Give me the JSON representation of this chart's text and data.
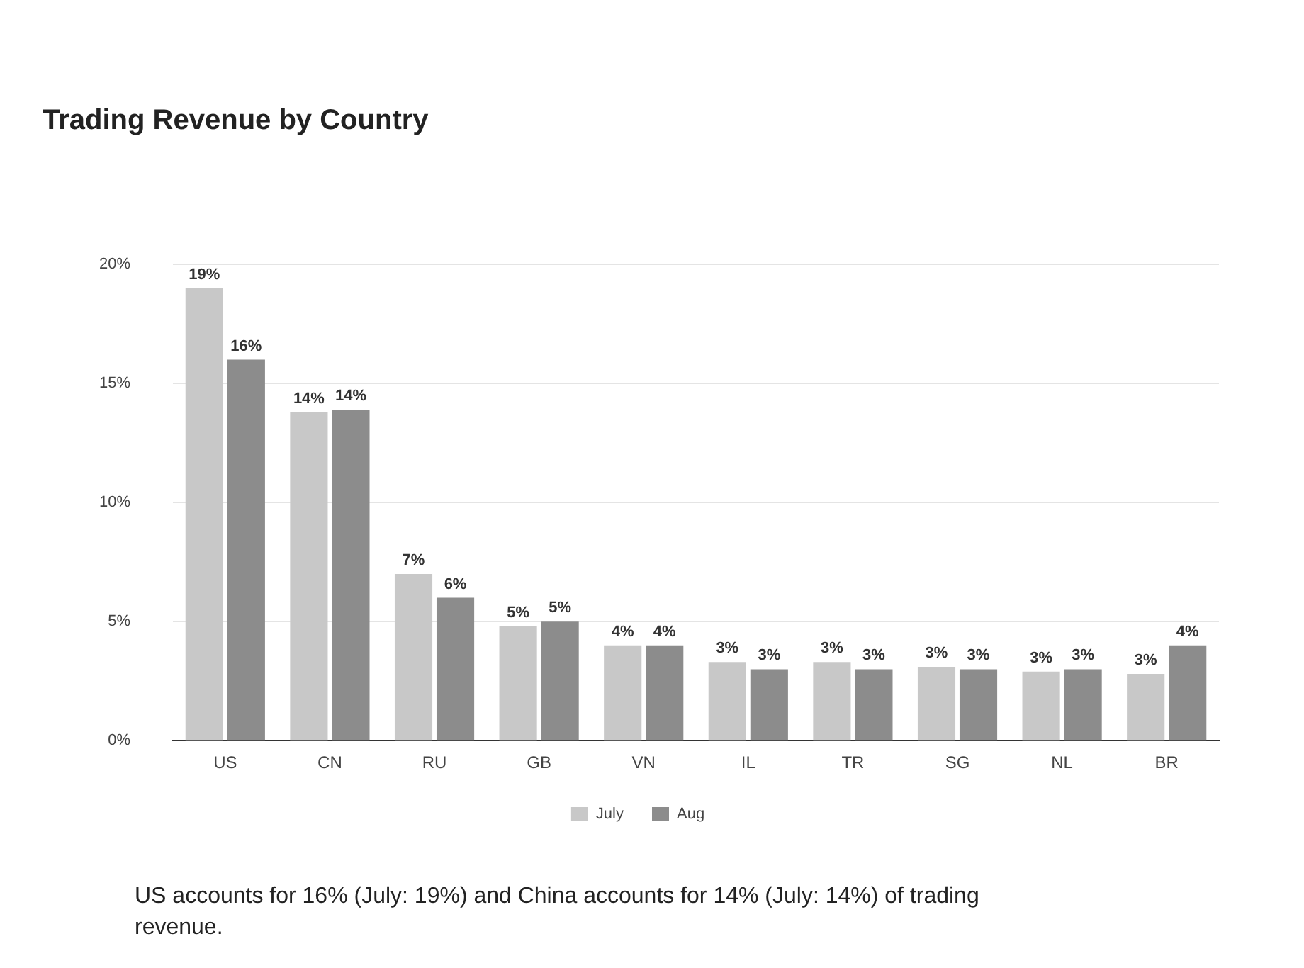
{
  "chart_data": {
    "type": "bar",
    "title": "Trading Revenue by Country",
    "categories": [
      "US",
      "CN",
      "RU",
      "GB",
      "VN",
      "IL",
      "TR",
      "SG",
      "NL",
      "BR"
    ],
    "series": [
      {
        "name": "July",
        "color": "#c8c8c8",
        "values": [
          19,
          13.8,
          7,
          4.8,
          4,
          3.3,
          3.3,
          3.1,
          2.9,
          2.8
        ],
        "value_labels": [
          "19%",
          "14%",
          "7%",
          "5%",
          "4%",
          "3%",
          "3%",
          "3%",
          "3%",
          "3%"
        ]
      },
      {
        "name": "Aug",
        "color": "#8c8c8c",
        "values": [
          16,
          13.9,
          6,
          5,
          4,
          3,
          3,
          3,
          3,
          4
        ],
        "value_labels": [
          "16%",
          "14%",
          "6%",
          "5%",
          "4%",
          "3%",
          "3%",
          "3%",
          "3%",
          "4%"
        ]
      }
    ],
    "ylim": [
      0,
      20
    ],
    "yticks": [
      {
        "value": 0,
        "label": "0%"
      },
      {
        "value": 5,
        "label": "5%"
      },
      {
        "value": 10,
        "label": "10%"
      },
      {
        "value": 15,
        "label": "15%"
      },
      {
        "value": 20,
        "label": "20%"
      }
    ],
    "grid": "y",
    "legend": "bottom",
    "annotations": [
      "US accounts for 16% (July: 19%) and China accounts for 14% (July: 14%) of trading revenue."
    ]
  }
}
